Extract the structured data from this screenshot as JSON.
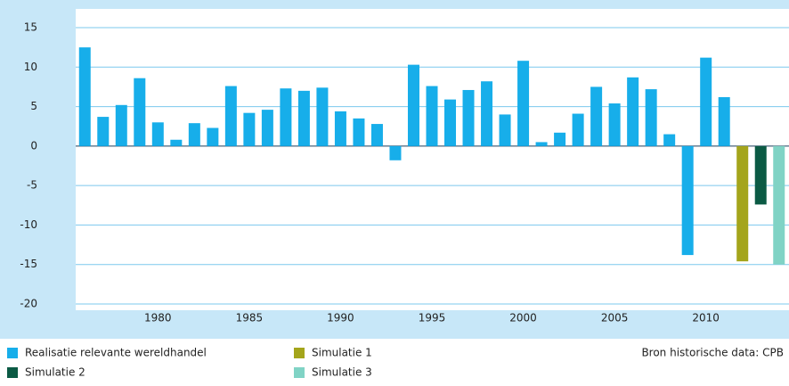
{
  "chart_data": {
    "type": "bar",
    "categories": [
      null,
      null,
      null,
      null,
      "1980",
      null,
      null,
      null,
      null,
      "1985",
      null,
      null,
      null,
      null,
      "1990",
      null,
      null,
      null,
      null,
      "1995",
      null,
      null,
      null,
      null,
      "2000",
      null,
      null,
      null,
      null,
      "2005",
      null,
      null,
      null,
      null,
      "2010",
      null,
      null,
      null,
      null
    ],
    "series": [
      {
        "name": "Realisatie relevante wereldhandel",
        "color": "#17aeea",
        "values": [
          12.5,
          3.7,
          5.2,
          8.6,
          3.0,
          0.8,
          2.9,
          2.3,
          7.6,
          4.2,
          4.6,
          7.3,
          7.0,
          7.4,
          4.4,
          3.5,
          2.8,
          -1.8,
          10.3,
          7.6,
          5.9,
          7.1,
          8.2,
          4.0,
          10.8,
          0.5,
          1.7,
          4.1,
          7.5,
          5.4,
          8.7,
          7.2,
          1.5,
          -13.8,
          11.2,
          6.2,
          null,
          null,
          null
        ]
      },
      {
        "name": "Simulatie 1",
        "color": "#a4a51b",
        "values": [
          null,
          null,
          null,
          null,
          null,
          null,
          null,
          null,
          null,
          null,
          null,
          null,
          null,
          null,
          null,
          null,
          null,
          null,
          null,
          null,
          null,
          null,
          null,
          null,
          null,
          null,
          null,
          null,
          null,
          null,
          null,
          null,
          null,
          null,
          null,
          null,
          -14.6,
          null,
          null
        ]
      },
      {
        "name": "Simulatie 2",
        "color": "#0b5a44",
        "values": [
          null,
          null,
          null,
          null,
          null,
          null,
          null,
          null,
          null,
          null,
          null,
          null,
          null,
          null,
          null,
          null,
          null,
          null,
          null,
          null,
          null,
          null,
          null,
          null,
          null,
          null,
          null,
          null,
          null,
          null,
          null,
          null,
          null,
          null,
          null,
          null,
          null,
          -7.4,
          null
        ]
      },
      {
        "name": "Simulatie 3",
        "color": "#80d3c5",
        "values": [
          null,
          null,
          null,
          null,
          null,
          null,
          null,
          null,
          null,
          null,
          null,
          null,
          null,
          null,
          null,
          null,
          null,
          null,
          null,
          null,
          null,
          null,
          null,
          null,
          null,
          null,
          null,
          null,
          null,
          null,
          null,
          null,
          null,
          null,
          null,
          null,
          null,
          null,
          -15.0
        ]
      }
    ],
    "ylim": [
      -20,
      15
    ],
    "yticks": [
      -20,
      -15,
      -10,
      -5,
      0,
      5,
      10,
      15
    ],
    "grid": true,
    "source": "Bron historische data: CPB"
  }
}
